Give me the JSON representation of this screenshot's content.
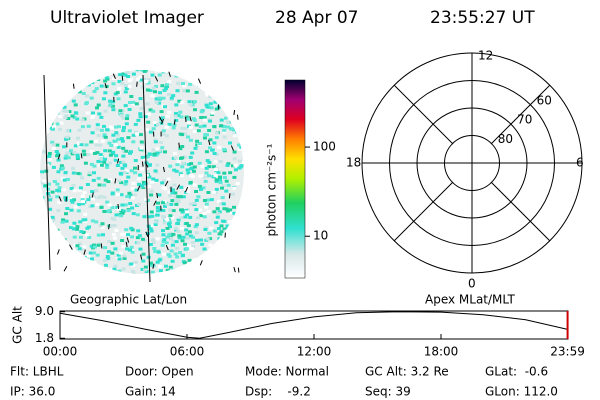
{
  "header": {
    "instrument": "Ultraviolet Imager",
    "date": "28 Apr 07",
    "time": "23:55:27 UT"
  },
  "colorbar": {
    "label": "photon cm⁻²s⁻¹",
    "scale": "log",
    "lim": [
      3.4,
      565
    ],
    "ticks": [
      10,
      100
    ]
  },
  "polar": {
    "mlt_labels": {
      "top": "12",
      "left": "18",
      "right": "6",
      "bottom": "0"
    },
    "lat_rings": [
      80,
      70,
      60
    ]
  },
  "altitude_plot": {
    "left_title": "Geographic Lat/Lon",
    "right_title": "Apex MLat/MLT",
    "y_label": "GC Alt",
    "xlim": [
      0,
      24
    ],
    "ylim": [
      1.6,
      9.2
    ],
    "xticks": [
      {
        "value": 0,
        "label": "00:00"
      },
      {
        "value": 6,
        "label": "06:00"
      },
      {
        "value": 12,
        "label": "12:00"
      },
      {
        "value": 18,
        "label": "18:00"
      },
      {
        "value": 23.98,
        "label": "23:59"
      }
    ],
    "yticks": [
      {
        "value": 9,
        "label": "9.0"
      },
      1.8
    ],
    "x": [
      0,
      2,
      4,
      6,
      6.6,
      8,
      10,
      12,
      14,
      16,
      18,
      20,
      22,
      23.98
    ],
    "values": [
      8.6,
      6.6,
      4.3,
      2.1,
      1.8,
      3.4,
      5.8,
      7.6,
      8.7,
      9.0,
      8.9,
      8.2,
      6.8,
      4.2
    ],
    "color": "#000000",
    "marker_color": "#cc0000"
  },
  "footer": {
    "rows": [
      [
        "Flt: LBHL",
        "Door: Open",
        "Mode: Normal",
        "GC Alt: 3.2 Re",
        "GLat:  -0.6"
      ],
      [
        "IP: 36.0",
        "Gain: 14",
        "Dsp:    -9.2",
        "Seq: 39",
        "GLon: 112.0"
      ]
    ]
  }
}
